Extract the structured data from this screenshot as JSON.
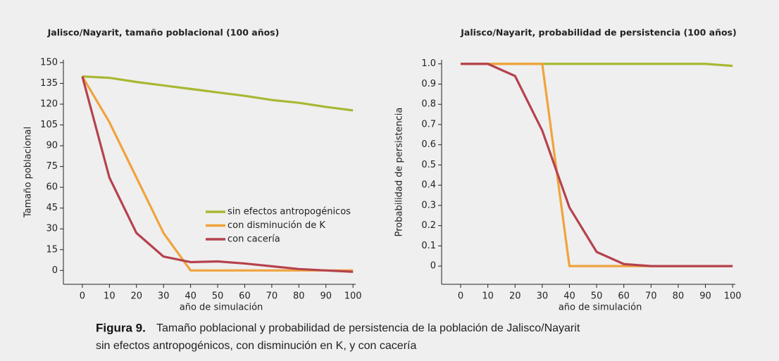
{
  "chart_data": [
    {
      "type": "line",
      "title": "Jalisco/Nayarit, tamaño poblacional (100 años)",
      "xlabel": "año de simulación",
      "ylabel": "Tamaño poblacional",
      "x": [
        0,
        10,
        20,
        30,
        40,
        50,
        60,
        70,
        80,
        90,
        100
      ],
      "xlim": [
        -7,
        101
      ],
      "xticks": [
        0,
        10,
        20,
        30,
        40,
        50,
        60,
        70,
        80,
        90,
        100
      ],
      "ylim": [
        -10,
        152
      ],
      "yticks": [
        0,
        15,
        30,
        45,
        60,
        75,
        90,
        105,
        120,
        135,
        150
      ],
      "legend": true,
      "series": [
        {
          "name": "sin efectos antropogénicos",
          "color": "#a8b832",
          "values": [
            140,
            139,
            136,
            133.5,
            131,
            128.5,
            126,
            123,
            121,
            118,
            115.5
          ]
        },
        {
          "name": "con disminución de K",
          "color": "#f0a33c",
          "values": [
            140,
            107,
            67,
            27,
            0,
            0,
            0,
            0,
            0,
            0,
            0
          ]
        },
        {
          "name": "con cacería",
          "color": "#b5424e",
          "values": [
            140,
            67,
            27,
            10,
            6,
            6.5,
            5,
            3,
            1,
            0,
            -1
          ]
        }
      ]
    },
    {
      "type": "line",
      "title": "Jalisco/Nayarit, probabilidad de persistencia (100 años)",
      "xlabel": "año de simulación",
      "ylabel": "Probabilidad de persistencia",
      "x": [
        0,
        10,
        20,
        30,
        40,
        50,
        60,
        70,
        80,
        90,
        100
      ],
      "xlim": [
        -7,
        101
      ],
      "xticks": [
        0,
        10,
        20,
        30,
        40,
        50,
        60,
        70,
        80,
        90,
        100
      ],
      "ylim": [
        -0.09,
        1.02
      ],
      "yticks": [
        0,
        0.1,
        0.2,
        0.3,
        0.4,
        0.5,
        0.6,
        0.7,
        0.8,
        0.9,
        {
          "value": 1,
          "label": "1.0"
        }
      ],
      "legend": false,
      "series": [
        {
          "name": "sin efectos antropogénicos",
          "color": "#a8b832",
          "values": [
            1,
            1,
            1,
            1,
            1,
            1,
            1,
            1,
            1,
            1,
            0.99
          ]
        },
        {
          "name": "con disminución de K",
          "color": "#f0a33c",
          "values": [
            1,
            1,
            1,
            1,
            0,
            0,
            0,
            0,
            0,
            0,
            0
          ]
        },
        {
          "name": "con cacería",
          "color": "#b5424e",
          "values": [
            1,
            1,
            0.94,
            0.67,
            0.29,
            0.07,
            0.01,
            0,
            0,
            0,
            0
          ]
        }
      ]
    }
  ],
  "caption": {
    "label": "Figura 9.",
    "lines": [
      "Tamaño poblacional y probabilidad de persistencia de la población de Jalisco/Nayarit",
      "sin efectos antropogénicos, con disminución en K, y con cacería"
    ]
  }
}
